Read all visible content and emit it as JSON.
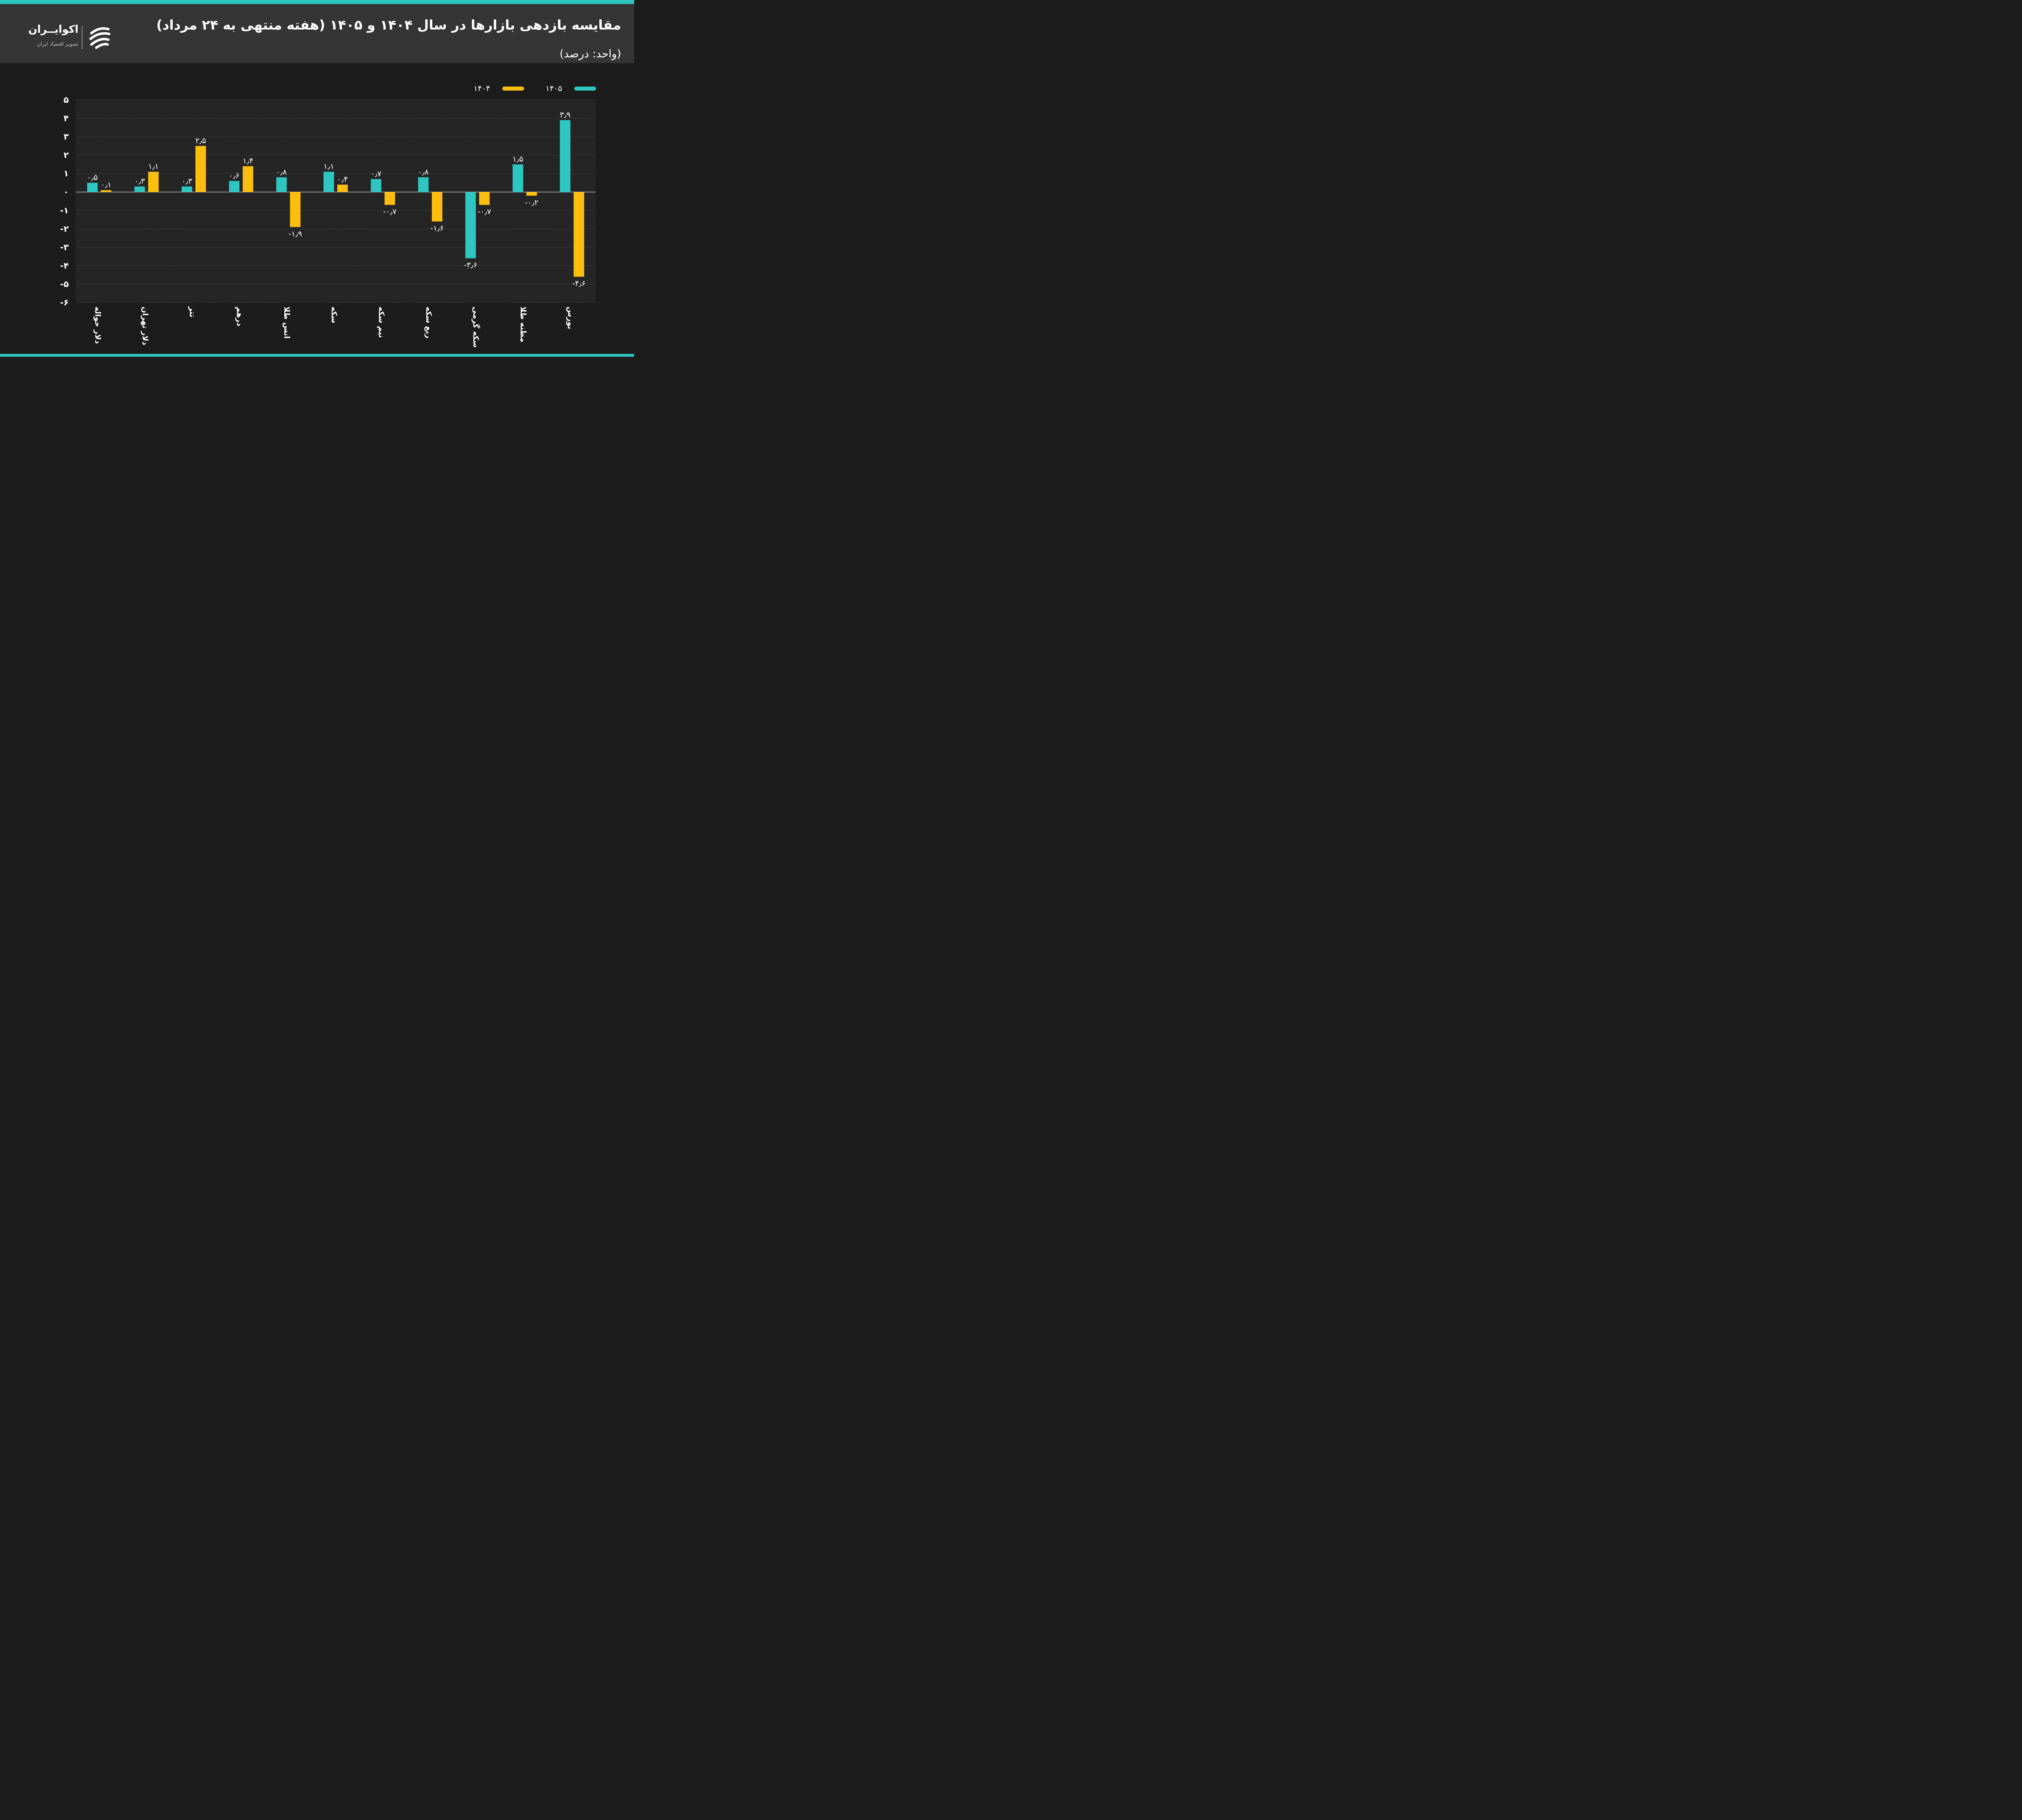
{
  "header": {
    "title": "مقایسه بازدهی بازارها در سال ۱۴۰۴ و ۱۴۰۵ (هفته منتهی به ۲۴ مرداد)",
    "subtitle": "(واحد: درصد)"
  },
  "logo": {
    "name": "اکوایــران",
    "tagline": "تصویر اقتصاد ایران",
    "icon": "ecoiran-logo-icon"
  },
  "colors": {
    "teal": "#2ec6c1",
    "yellow": "#fdbe0f",
    "background": "#1c1c1c",
    "header": "#353535"
  },
  "chart_data": {
    "type": "bar",
    "categories": [
      "دلار حواله",
      "دلار تهران",
      "تتر",
      "درهم",
      "انس طلا",
      "سکه",
      "نیم سکه",
      "ربع سکه",
      "سکه گرمی",
      "مظنه طلا",
      "بورس"
    ],
    "series": [
      {
        "name": "۱۴۰۵",
        "color": "#2ec6c1",
        "values": [
          0.5,
          0.3,
          0.3,
          0.6,
          0.8,
          1.1,
          0.7,
          0.8,
          -3.6,
          1.5,
          3.9
        ],
        "labels": [
          "۰٫۵",
          "۰٫۳",
          "۰٫۳",
          "۰٫۶",
          "۰٫۸",
          "۱٫۱",
          "۰٫۷",
          "۰٫۸",
          "-۳٫۶",
          "۱٫۵",
          "۳٫۹"
        ]
      },
      {
        "name": "۱۴۰۴",
        "color": "#fdbe0f",
        "values": [
          0.1,
          1.1,
          2.5,
          1.4,
          -1.9,
          0.4,
          -0.7,
          -1.6,
          -0.7,
          -0.2,
          -4.6
        ],
        "labels": [
          "۰٫۱",
          "۱٫۱",
          "۲٫۵",
          "۱٫۴",
          "-۱٫۹",
          "۰٫۴",
          "-۰٫۷",
          "-۱٫۶",
          "-۰٫۷",
          "-۰٫۲",
          "-۴٫۶"
        ]
      }
    ],
    "ylim": [
      -6,
      5
    ],
    "yticks": [
      5,
      4,
      3,
      2,
      1,
      0,
      -1,
      -2,
      -3,
      -4,
      -5,
      -6
    ],
    "ytick_labels": [
      "۵",
      "۴",
      "۳",
      "۲",
      "۱",
      "۰",
      "-۱",
      "-۲",
      "-۳",
      "-۴",
      "-۵",
      "-۶"
    ],
    "grid": true,
    "legend_position": "top-right"
  }
}
